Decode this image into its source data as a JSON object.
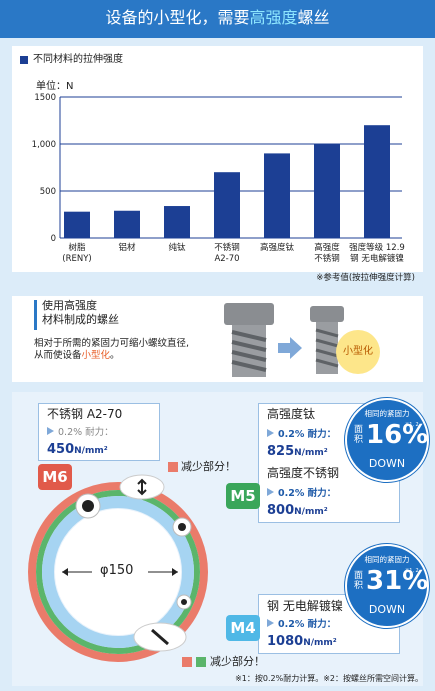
{
  "header": {
    "title_parts": [
      "设备的小型化，需要",
      "高强度",
      "螺丝"
    ]
  },
  "chart_data": {
    "type": "bar",
    "title": "不同材料的拉伸强度",
    "unit_label": "单位：N",
    "categories": [
      "树脂\n(RENY)",
      "铝材",
      "纯钛",
      "不锈钢\nA2-70",
      "高强度钛",
      "高强度\n不锈钢",
      "强度等级 12.9\n钢 无电解镀镍"
    ],
    "values": [
      280,
      290,
      340,
      700,
      900,
      1000,
      1200
    ],
    "color": "#1c3f94",
    "ylim": [
      0,
      1500
    ],
    "yticks": [
      0,
      500,
      {
        "value": 1000,
        "label": "1,000"
      },
      1500
    ],
    "grid": true,
    "note": "※参考值(按拉伸强度计算)"
  },
  "intro": {
    "heading": "使用高强度\n材料制成的螺丝",
    "text_parts": [
      "相对于所需的紧固力可缩小螺纹直径,\n从而使设备",
      "小型化",
      "。"
    ],
    "badge": "小型化"
  },
  "comparison": {
    "m6": {
      "tag": "M6",
      "material": "不锈钢 A2-70",
      "proof_label": "0.2% 耐力：",
      "value": "450",
      "unit": "N/mm²"
    },
    "reduce_label": "减少部分！",
    "m5": {
      "tag": "M5",
      "items": [
        {
          "material": "高强度钛",
          "proof_label": "0.2% 耐力：",
          "value": "825",
          "unit": "N/mm²"
        },
        {
          "material": "高强度不锈钢",
          "proof_label": "0.2% 耐力：",
          "value": "800",
          "unit": "N/mm²"
        }
      ],
      "badge": {
        "top": "相同的紧固力",
        "area": "面\n积",
        "percent": "16%",
        "note": "※1, 2",
        "down": "DOWN"
      }
    },
    "m4": {
      "tag": "M4",
      "material": "钢 无电解镀镍",
      "proof_label": "0.2% 耐力：",
      "value": "1080",
      "unit": "N/mm²",
      "badge": {
        "top": "相同的紧固力",
        "area": "面\n积",
        "percent": "31%",
        "note": "※1, 2",
        "down": "DOWN"
      }
    },
    "diameter": "φ150",
    "bottom_label": "减少部分！",
    "footnote": "※1：按0.2%耐力计算。※2：按螺丝所需空间计算。"
  }
}
